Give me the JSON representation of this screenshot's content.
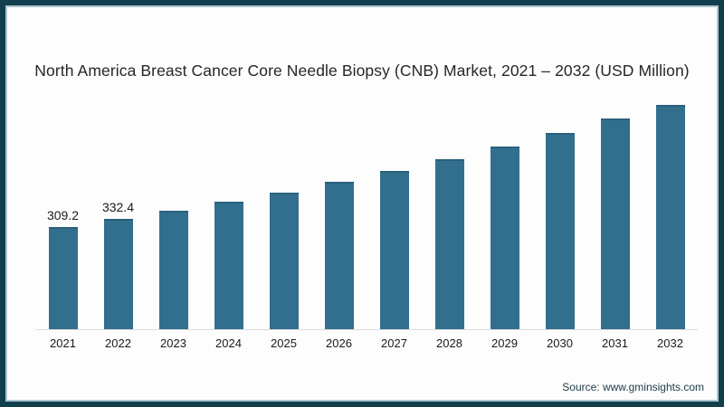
{
  "source": "Source: www.gminsights.com",
  "colors": {
    "background": "#fdfdfd",
    "bar_fill": "#326f8e",
    "bar_top_edge": "#2a617d",
    "frame_outer": "#123f4e",
    "frame_inner": "#aec8d2",
    "axis_line": "#dcdcdc",
    "title_text": "#262626",
    "label_text": "#1a1a1a",
    "tick_text": "#1a1a1a",
    "source_text": "#203e4a"
  },
  "chart_data": {
    "type": "bar",
    "title": "North America Breast Cancer Core Needle Biopsy (CNB) Market, 2021 – 2032 (USD Million)",
    "categories": [
      "2021",
      "2022",
      "2023",
      "2024",
      "2025",
      "2026",
      "2027",
      "2028",
      "2029",
      "2030",
      "2031",
      "2032"
    ],
    "values": [
      309.2,
      332.4,
      357.4,
      384.2,
      413.0,
      444.0,
      477.3,
      513.1,
      551.6,
      593.0,
      637.5,
      685.3
    ],
    "data_labels": [
      "309.2",
      "332.4",
      "",
      "",
      "",
      "",
      "",
      "",
      "",
      "",
      "",
      ""
    ],
    "xlabel": "",
    "ylabel": "",
    "ylim": [
      0,
      700
    ],
    "grid": false,
    "legend": false,
    "yaxis_visible": false
  }
}
